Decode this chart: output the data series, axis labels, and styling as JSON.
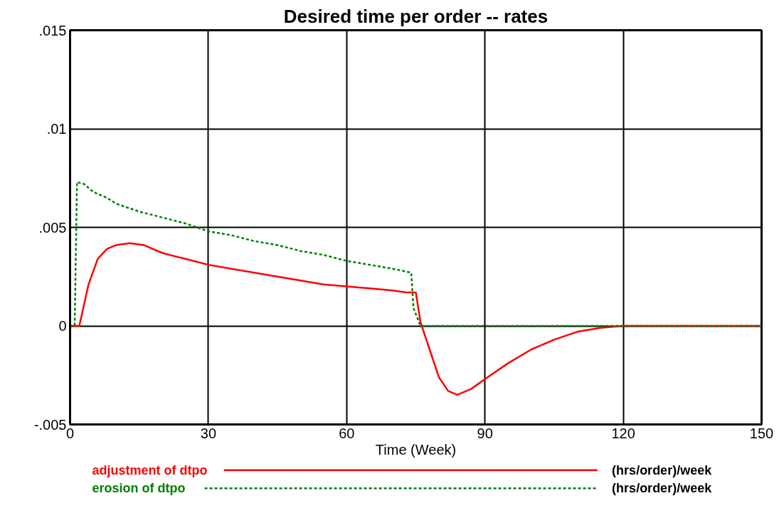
{
  "chart_data": {
    "type": "line",
    "title": "Desired time per order -- rates",
    "xlabel": "Time (Week)",
    "xlim": [
      0,
      150
    ],
    "xticks": [
      0,
      30,
      60,
      90,
      120,
      150
    ],
    "ylim": [
      -0.005,
      0.015
    ],
    "yticks": [
      {
        "value": -0.005,
        "label": "-.005"
      },
      {
        "value": 0,
        "label": "0"
      },
      {
        "value": 0.005,
        "label": ".005"
      },
      {
        "value": 0.01,
        "label": ".01"
      },
      {
        "value": 0.015,
        "label": ".015"
      }
    ],
    "grid": true,
    "legend": "bottom",
    "annotations": [
      "(hrs/order)/week",
      "(hrs/order)/week"
    ],
    "series": [
      {
        "name": "adjustment of dtpo",
        "color": "#ff0000",
        "line_style": "solid",
        "x": [
          0,
          2,
          4,
          6,
          8,
          10,
          13,
          16,
          20,
          25,
          30,
          35,
          40,
          45,
          50,
          55,
          60,
          65,
          70,
          73,
          75,
          76,
          78,
          80,
          82,
          84,
          87,
          90,
          95,
          100,
          105,
          110,
          115,
          120,
          150
        ],
        "values": [
          0,
          0,
          0.0021,
          0.0034,
          0.0039,
          0.0041,
          0.0042,
          0.0041,
          0.0037,
          0.0034,
          0.0031,
          0.0029,
          0.0027,
          0.0025,
          0.0023,
          0.0021,
          0.002,
          0.0019,
          0.0018,
          0.0017,
          0.0017,
          0.0002,
          -0.0012,
          -0.0026,
          -0.0033,
          -0.0035,
          -0.0032,
          -0.0027,
          -0.0019,
          -0.0012,
          -0.0007,
          -0.0003,
          -0.0001,
          0,
          0
        ]
      },
      {
        "name": "erosion of dtpo",
        "color": "#008000",
        "line_style": "dashed",
        "x": [
          0,
          1,
          1.5,
          3,
          5,
          8,
          10,
          15,
          20,
          25,
          30,
          35,
          40,
          45,
          50,
          55,
          60,
          65,
          70,
          74,
          74.5,
          76,
          150
        ],
        "values": [
          0,
          0,
          0.0073,
          0.0072,
          0.0068,
          0.0065,
          0.0062,
          0.0058,
          0.0055,
          0.0052,
          0.0048,
          0.0046,
          0.0043,
          0.0041,
          0.0038,
          0.0036,
          0.0033,
          0.0031,
          0.0029,
          0.0027,
          0.0009,
          0,
          0
        ]
      }
    ]
  }
}
